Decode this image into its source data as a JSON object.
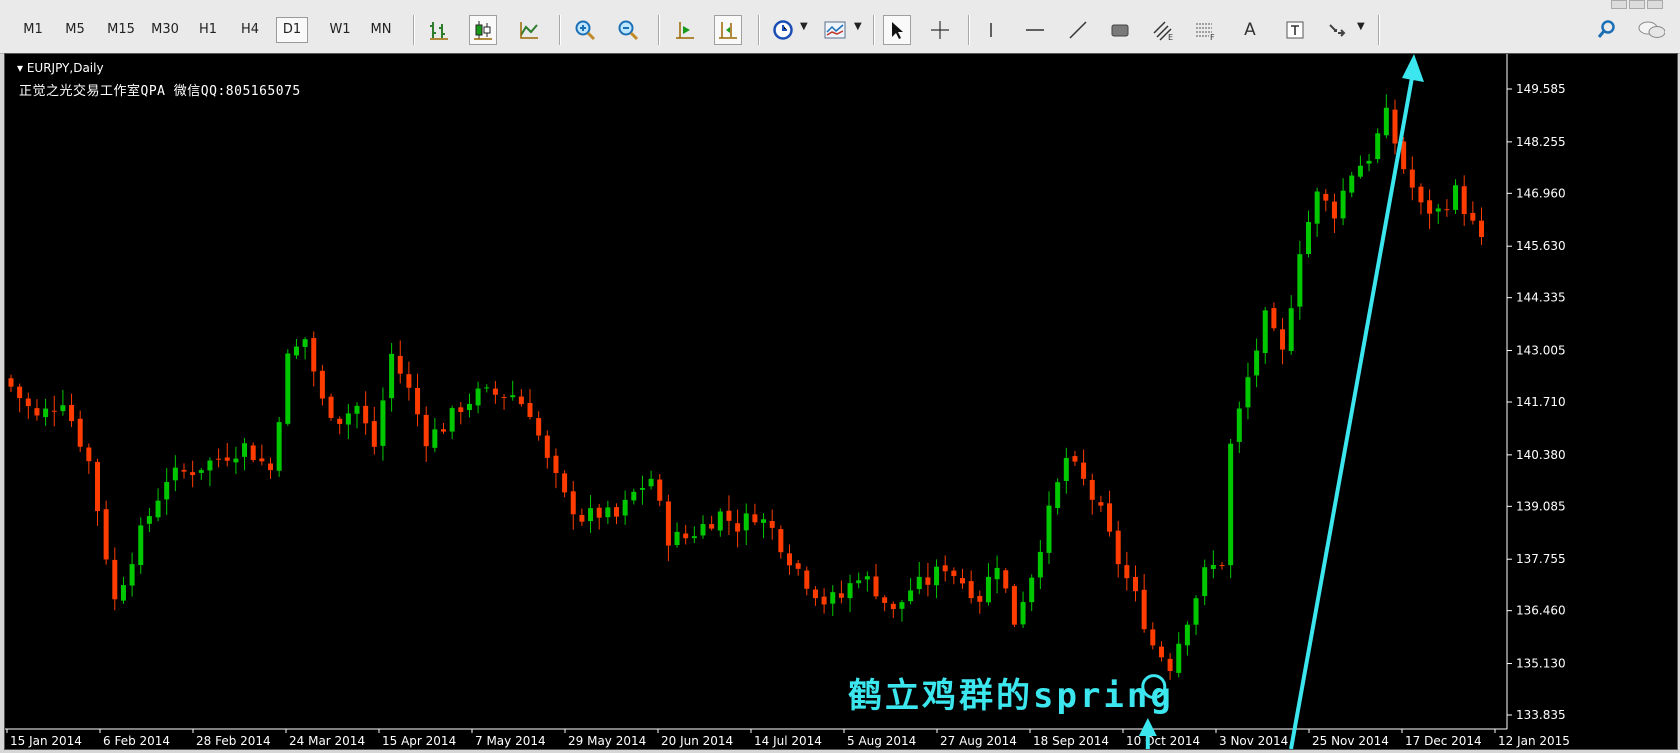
{
  "toolbar": {
    "timeframes": [
      "M1",
      "M5",
      "M15",
      "M30",
      "H1",
      "H4",
      "D1",
      "W1",
      "MN"
    ],
    "active_timeframe": "D1",
    "text_tool_label": "A",
    "icons": [
      "bar-chart-icon",
      "candlestick-chart-icon",
      "line-chart-icon",
      "zoom-in-icon",
      "zoom-out-icon",
      "auto-scroll-icon",
      "chart-shift-icon",
      "clock-periods-icon",
      "indicators-icon",
      "cursor-icon",
      "crosshair-icon",
      "vertical-line-icon",
      "horizontal-line-icon",
      "trend-line-icon",
      "rectangle-icon",
      "equidistant-channel-icon",
      "fibonacci-icon",
      "text-icon",
      "text-label-icon",
      "arrows-icon",
      "search-icon",
      "chat-icon"
    ]
  },
  "chart": {
    "symbol_title": "EURJPY,Daily",
    "caption": "正觉之光交易工作室QPA 微信QQ:805165075",
    "annotation": "鹤立鸡群的spring",
    "colors": {
      "background": "#000000",
      "bull": "#00c800",
      "bear": "#ff3c00",
      "annotation": "#3be6ee",
      "axis": "#ffffff"
    }
  },
  "chart_data": {
    "type": "candlestick",
    "symbol": "EURJPY",
    "timeframe": "Daily",
    "y_ticks": [
      "149.585",
      "148.255",
      "146.960",
      "145.630",
      "144.335",
      "143.005",
      "141.710",
      "140.380",
      "139.085",
      "137.755",
      "136.460",
      "135.130",
      "133.835"
    ],
    "ylim": [
      133.835,
      149.585
    ],
    "x_ticks": [
      "15 Jan 2014",
      "6 Feb 2014",
      "28 Feb 2014",
      "24 Mar 2014",
      "15 Apr 2014",
      "7 May 2014",
      "29 May 2014",
      "20 Jun 2014",
      "14 Jul 2014",
      "5 Aug 2014",
      "27 Aug 2014",
      "18 Sep 2014",
      "10 Oct 2014",
      "3 Nov 2014",
      "25 Nov 2014",
      "17 Dec 2014",
      "12 Jan 2015"
    ],
    "close_path": [
      [
        0,
        142.1
      ],
      [
        3,
        141.3
      ],
      [
        6,
        141.8
      ],
      [
        9,
        140.2
      ],
      [
        12,
        136.7
      ],
      [
        15,
        138.4
      ],
      [
        18,
        139.8
      ],
      [
        21,
        140.0
      ],
      [
        24,
        140.3
      ],
      [
        27,
        140.6
      ],
      [
        30,
        140.0
      ],
      [
        32,
        142.8
      ],
      [
        34,
        143.3
      ],
      [
        36,
        141.7
      ],
      [
        38,
        141.3
      ],
      [
        40,
        141.6
      ],
      [
        42,
        140.6
      ],
      [
        44,
        142.9
      ],
      [
        46,
        142.0
      ],
      [
        48,
        140.8
      ],
      [
        50,
        141.1
      ],
      [
        52,
        141.6
      ],
      [
        54,
        141.9
      ],
      [
        56,
        141.9
      ],
      [
        58,
        141.9
      ],
      [
        60,
        141.5
      ],
      [
        62,
        140.2
      ],
      [
        64,
        139.3
      ],
      [
        66,
        138.8
      ],
      [
        68,
        138.9
      ],
      [
        70,
        138.8
      ],
      [
        72,
        139.4
      ],
      [
        74,
        139.8
      ],
      [
        76,
        138.3
      ],
      [
        78,
        138.3
      ],
      [
        80,
        138.6
      ],
      [
        82,
        138.9
      ],
      [
        84,
        138.6
      ],
      [
        86,
        138.9
      ],
      [
        88,
        138.5
      ],
      [
        90,
        137.8
      ],
      [
        92,
        137.2
      ],
      [
        94,
        136.7
      ],
      [
        96,
        136.8
      ],
      [
        98,
        137.4
      ],
      [
        100,
        137.0
      ],
      [
        102,
        136.4
      ],
      [
        104,
        137.0
      ],
      [
        106,
        137.2
      ],
      [
        108,
        137.6
      ],
      [
        110,
        137.2
      ],
      [
        112,
        136.8
      ],
      [
        114,
        137.7
      ],
      [
        116,
        136.2
      ],
      [
        118,
        137.4
      ],
      [
        120,
        138.9
      ],
      [
        122,
        140.3
      ],
      [
        124,
        139.7
      ],
      [
        126,
        138.9
      ],
      [
        128,
        137.7
      ],
      [
        130,
        136.8
      ],
      [
        132,
        135.6
      ],
      [
        134,
        135.1
      ],
      [
        136,
        136.3
      ],
      [
        138,
        137.4
      ],
      [
        140,
        137.7
      ],
      [
        141,
        140.6
      ],
      [
        143,
        142.3
      ],
      [
        145,
        143.8
      ],
      [
        147,
        142.9
      ],
      [
        149,
        145.6
      ],
      [
        151,
        146.9
      ],
      [
        153,
        146.5
      ],
      [
        155,
        147.5
      ],
      [
        157,
        147.9
      ],
      [
        159,
        148.9
      ],
      [
        161,
        147.6
      ],
      [
        163,
        146.6
      ],
      [
        165,
        146.5
      ],
      [
        167,
        147.0
      ],
      [
        168,
        146.6
      ],
      [
        170,
        145.7
      ]
    ],
    "annotation_text": "鹤立鸡群的spring",
    "annotation_circle_value": 134.55
  }
}
